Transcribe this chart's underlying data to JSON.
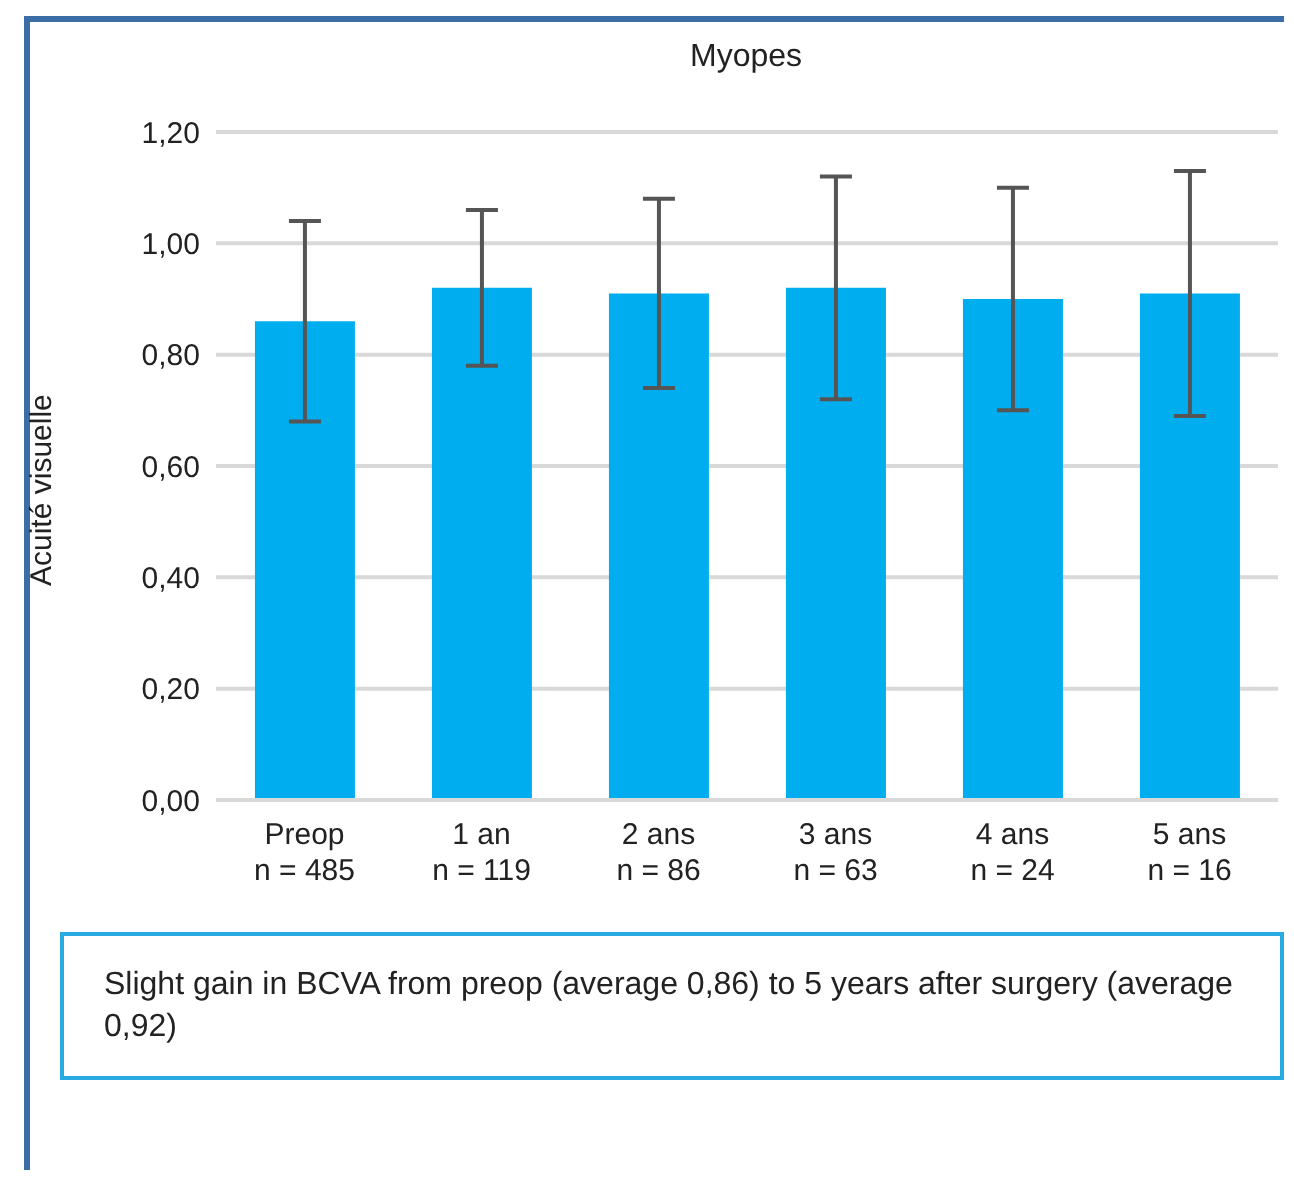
{
  "chart_data": {
    "type": "bar",
    "title": "Myopes",
    "ylabel": "Acuité visuelle",
    "categories": [
      "Preop\nn = 485",
      "1 an\nn = 119",
      "2 ans\nn = 86",
      "3 ans\nn = 63",
      "4 ans\nn = 24",
      "5 ans\nn = 16"
    ],
    "values": [
      0.86,
      0.92,
      0.91,
      0.92,
      0.9,
      0.91
    ],
    "errors": [
      0.18,
      0.14,
      0.17,
      0.2,
      0.2,
      0.22
    ],
    "color": "#00aeef",
    "ylim": [
      0,
      1.2
    ],
    "yticks": [
      {
        "value": 0,
        "label": "0,00"
      },
      {
        "value": 0.2,
        "label": "0,20"
      },
      {
        "value": 0.4,
        "label": "0,40"
      },
      {
        "value": 0.6,
        "label": "0,60"
      },
      {
        "value": 0.8,
        "label": "0,80"
      },
      {
        "value": 1,
        "label": "1,00"
      },
      {
        "value": 1.2,
        "label": "1,20"
      }
    ],
    "grid": "y",
    "annotations": [
      "Slight gain in BCVA from preop (average 0,86) to 5 years after surgery (average 0,92)"
    ]
  }
}
